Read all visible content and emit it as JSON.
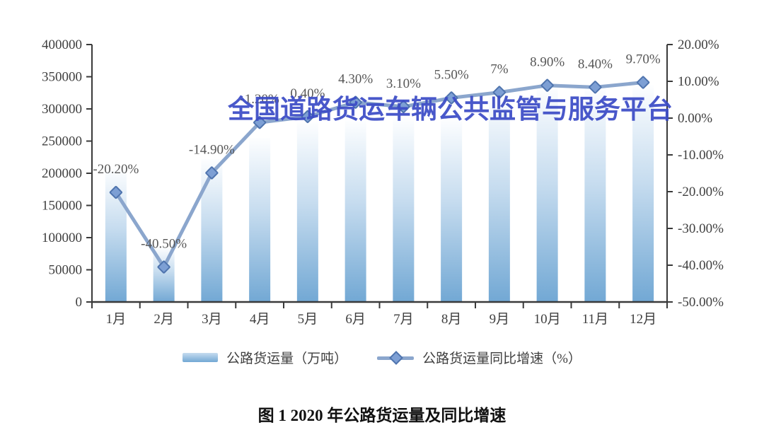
{
  "watermark": {
    "text": "全国道路货运车辆公共监管与服务平台",
    "color": "#3c4cc6"
  },
  "caption": "图 1  2020 年公路货运量及同比增速",
  "legend": {
    "items": [
      {
        "label": "公路货运量（万吨）",
        "swatch": "gradient-bar"
      },
      {
        "label": "公路货运量同比增速（%）",
        "swatch": "line-with-diamond"
      }
    ]
  },
  "chart_data": {
    "type": "combo",
    "categories": [
      "1月",
      "2月",
      "3月",
      "4月",
      "5月",
      "6月",
      "7月",
      "8月",
      "9月",
      "10月",
      "11月",
      "12月"
    ],
    "series": [
      {
        "name": "公路货运量（万吨）",
        "type": "bar",
        "axis": "left",
        "values": [
          207000,
          85000,
          222000,
          255000,
          279000,
          282000,
          285000,
          285000,
          323000,
          335000,
          332000,
          337000
        ]
      },
      {
        "name": "公路货运量同比增速（%）",
        "type": "line",
        "axis": "right",
        "values": [
          -20.2,
          -40.5,
          -14.9,
          -1.2,
          0.4,
          4.3,
          3.1,
          5.5,
          7,
          8.9,
          8.4,
          9.7
        ],
        "point_labels": [
          "-20.20%",
          "-40.50%",
          "-14.90%",
          "-1.20%",
          "0.40%",
          "4.30%",
          "3.10%",
          "5.50%",
          "7%",
          "8.90%",
          "8.40%",
          "9.70%"
        ]
      }
    ],
    "left_axis": {
      "min": 0,
      "max": 400000,
      "ticks": [
        "400000",
        "350000",
        "300000",
        "250000",
        "200000",
        "150000",
        "100000",
        "50000",
        "0"
      ]
    },
    "right_axis": {
      "min": -50,
      "max": 20,
      "ticks": [
        "20.00%",
        "10.00%",
        "0.00%",
        "-10.00%",
        "-20.00%",
        "-30.00%",
        "-40.00%",
        "-50.00%"
      ]
    },
    "grid": false,
    "legend_position": "bottom",
    "colors": {
      "bar_top": "#fdfeff",
      "bar_mid": "#c6dcef",
      "bar_bottom": "#72a8d4",
      "line": "#8ba6cd",
      "marker_fill": "#7d9fd4",
      "marker_stroke": "#4f74ae",
      "data_label": "#575757",
      "axis": "#3a3a3a",
      "axis_label": "#3f3f3f"
    }
  }
}
